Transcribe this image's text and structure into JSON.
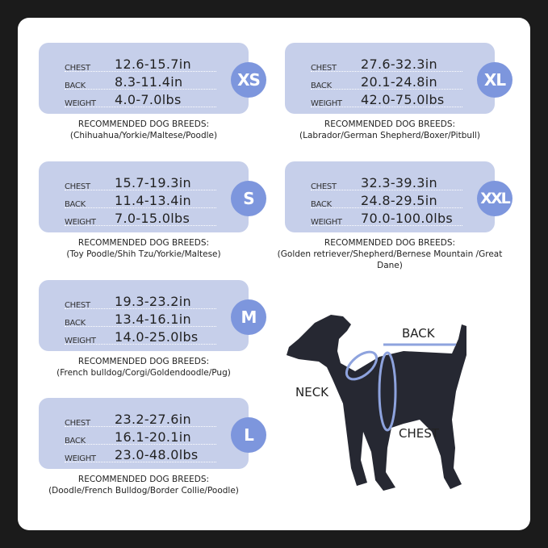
{
  "row_labels": {
    "chest": "CHEST",
    "back": "BACK",
    "weight": "WEIGHT"
  },
  "breeds_heading": "RECOMMENDED DOG BREEDS:",
  "sizes": [
    {
      "size": "XS",
      "chest": "12.6-15.7in",
      "back": "8.3-11.4in",
      "weight": "4.0-7.0lbs",
      "breeds": "(Chihuahua/Yorkie/Maltese/Poodle)"
    },
    {
      "size": "S",
      "chest": "15.7-19.3in",
      "back": "11.4-13.4in",
      "weight": "7.0-15.0lbs",
      "breeds": "(Toy Poodle/Shih Tzu/Yorkie/Maltese)"
    },
    {
      "size": "M",
      "chest": "19.3-23.2in",
      "back": "13.4-16.1in",
      "weight": "14.0-25.0lbs",
      "breeds": "(French bulldog/Corgi/Goldendoodle/Pug)"
    },
    {
      "size": "L",
      "chest": "23.2-27.6in",
      "back": "16.1-20.1in",
      "weight": "23.0-48.0lbs",
      "breeds": "(Doodle/French Bulldog/Border Collie/Poodle)"
    },
    {
      "size": "XL",
      "chest": "27.6-32.3in",
      "back": "20.1-24.8in",
      "weight": "42.0-75.0lbs",
      "breeds": "(Labrador/German Shepherd/Boxer/Pitbull)"
    },
    {
      "size": "XXL",
      "chest": "32.3-39.3in",
      "back": "24.8-29.5in",
      "weight": "70.0-100.0lbs",
      "breeds": "(Golden retriever/Shepherd/Bernese Mountain /Great Dane)"
    }
  ],
  "diagram": {
    "back": "BACK",
    "neck": "NECK",
    "chest": "CHEST"
  },
  "colors": {
    "card": "#c6cfea",
    "badge": "#7d96dd",
    "measure_line": "#8ea3de",
    "dog": "#262832"
  }
}
